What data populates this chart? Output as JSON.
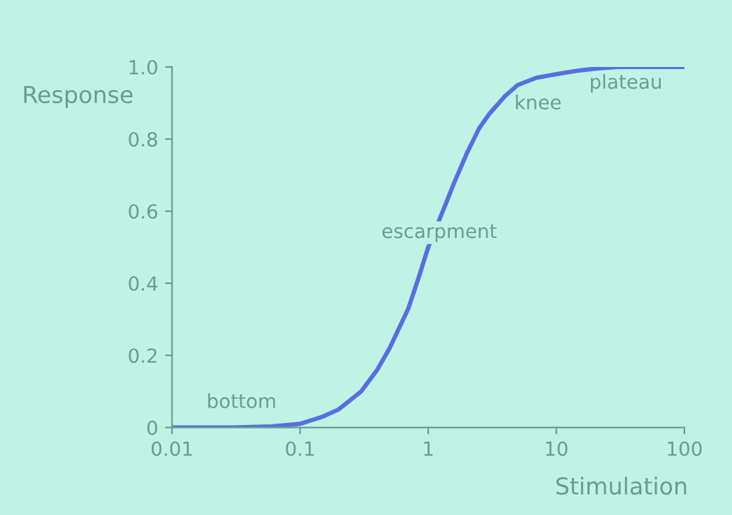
{
  "chart_data": {
    "type": "line",
    "xlabel": "Stimulation",
    "ylabel": "Response",
    "log": "x",
    "x": [
      0.01,
      0.03,
      0.06,
      0.1,
      0.15,
      0.2,
      0.3,
      0.4,
      0.5,
      0.7,
      0.85,
      1,
      1.3,
      1.6,
      2,
      2.5,
      3,
      4,
      5,
      7,
      10,
      15,
      20,
      30,
      50,
      100
    ],
    "series": [
      {
        "color": "#5a6ee0",
        "values": [
          0,
          0,
          0.003,
          0.01,
          0.03,
          0.05,
          0.1,
          0.16,
          0.22,
          0.33,
          0.42,
          0.5,
          0.6,
          0.68,
          0.76,
          0.83,
          0.87,
          0.92,
          0.95,
          0.97,
          0.98,
          0.99,
          0.995,
          1.0,
          1.0,
          1.0
        ]
      }
    ],
    "xlim": [
      0.01,
      100
    ],
    "ylim": [
      0,
      1.0
    ],
    "xticks": [
      0.01,
      0.1,
      1,
      10,
      100
    ],
    "yticks": [
      0,
      0.2,
      0.4,
      0.6,
      0.8,
      {
        "value": 1.0,
        "label": "1.0"
      }
    ],
    "annotations": [
      "bottom",
      "escarpment",
      "knee",
      "plateau"
    ],
    "grid": false,
    "legend": false,
    "marker": "none",
    "line_style": "solid"
  }
}
